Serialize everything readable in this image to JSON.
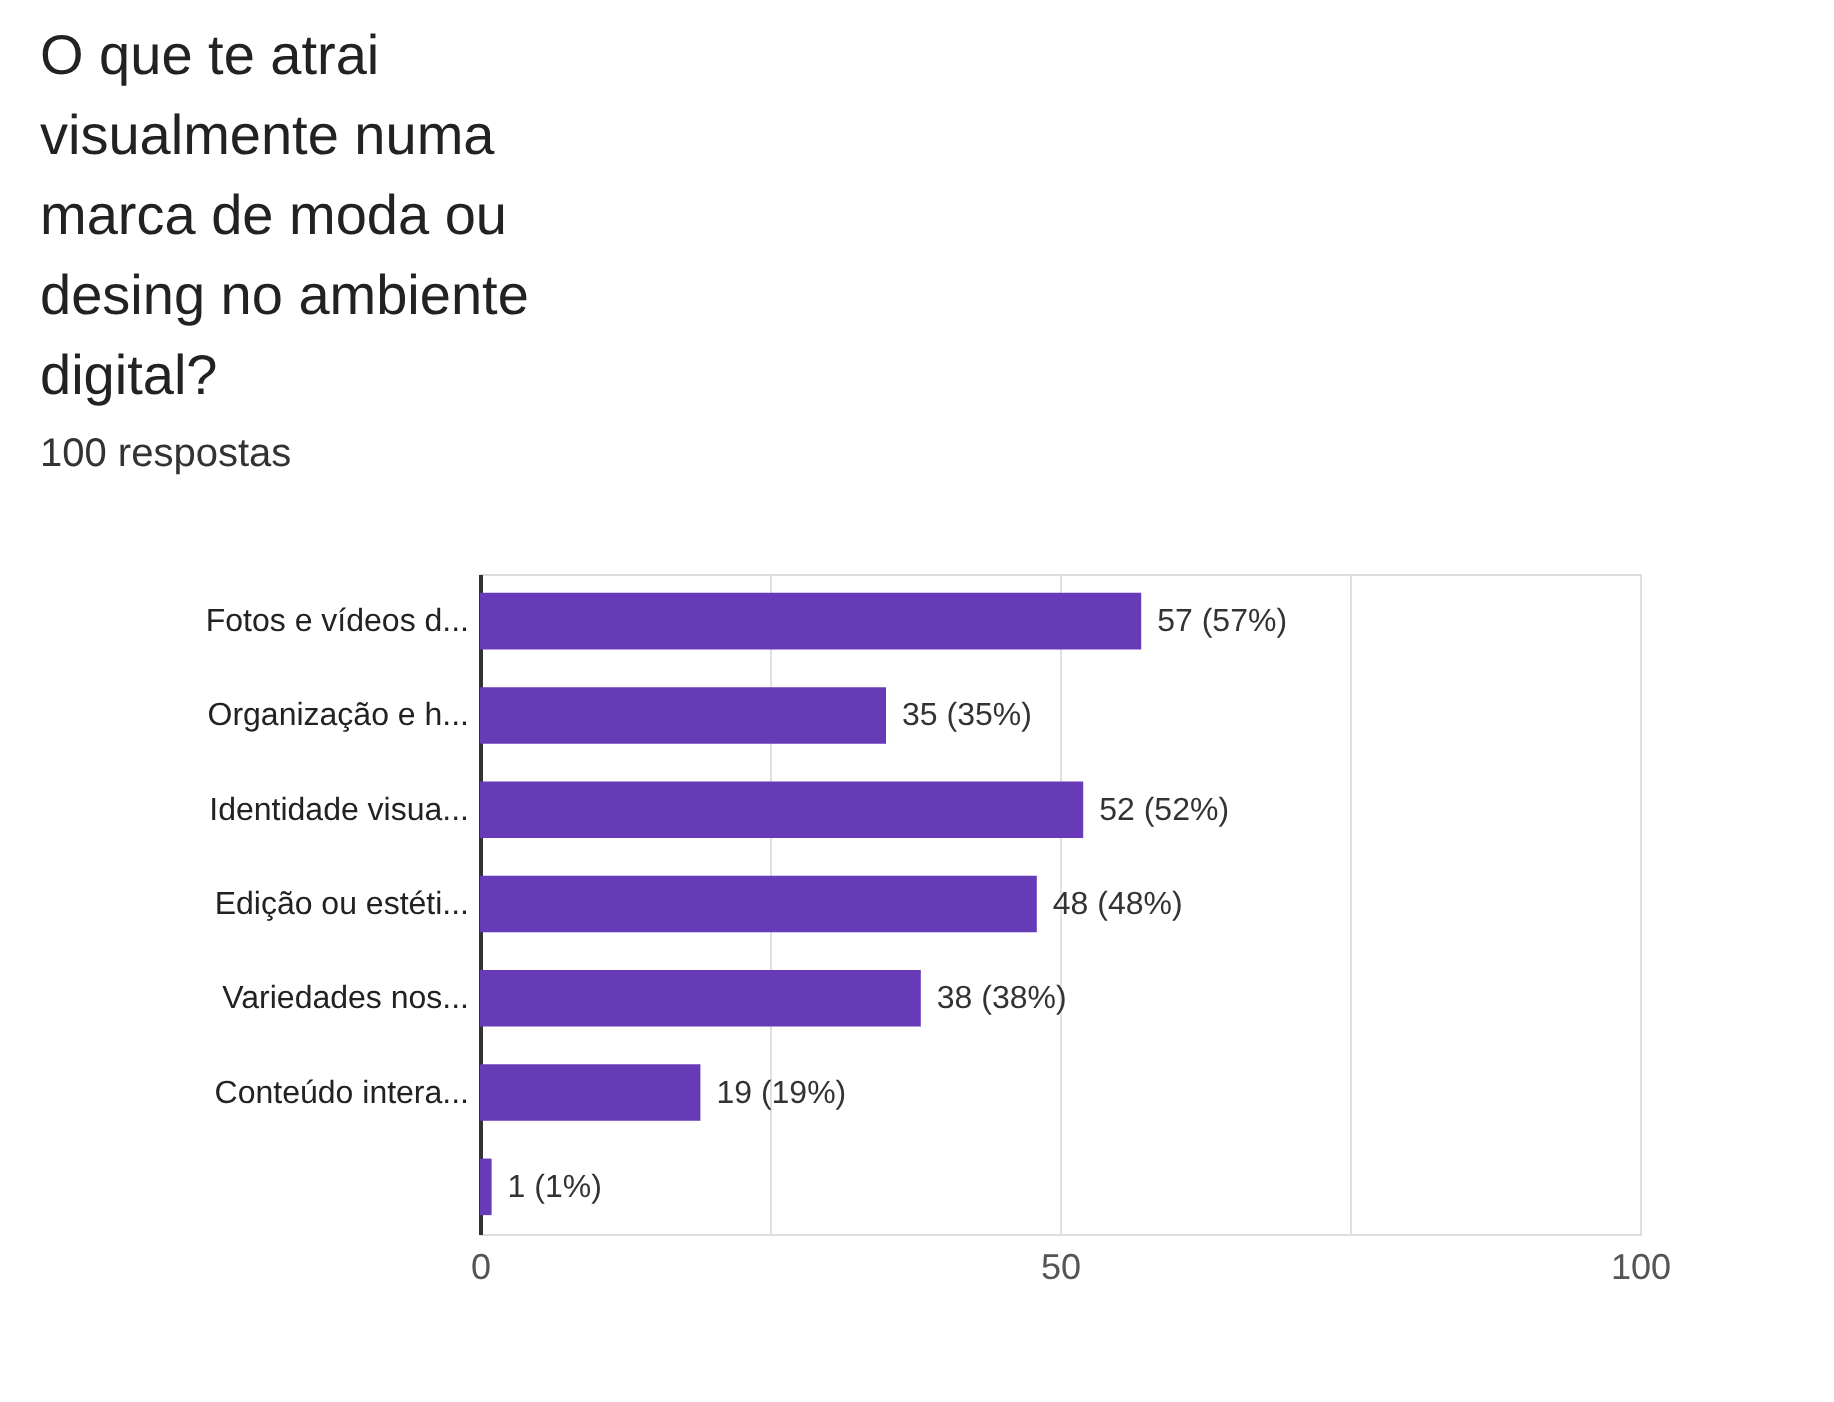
{
  "chart_data": {
    "type": "bar",
    "orientation": "horizontal",
    "title": "O que te atrai visualmente numa marca de moda ou desing no ambiente digital?",
    "subtitle": "100 respostas",
    "categories": [
      "Fotos e vídeos d...",
      "Organização e h...",
      "Identidade visua...",
      "Edição ou estéti...",
      "Variedades nos...",
      "Conteúdo intera...",
      null
    ],
    "values": [
      57,
      35,
      52,
      48,
      38,
      19,
      1
    ],
    "value_labels": [
      "57 (57%)",
      "35 (35%)",
      "52 (52%)",
      "48 (48%)",
      "38 (38%)",
      "19 (19%)",
      "1 (1%)"
    ],
    "color": "#673ab7",
    "xlim": [
      0,
      100
    ],
    "xticks": [
      0,
      {
        "value": 25,
        "label": null
      },
      50,
      {
        "value": 75,
        "label": null
      },
      100
    ],
    "grid": "x"
  }
}
